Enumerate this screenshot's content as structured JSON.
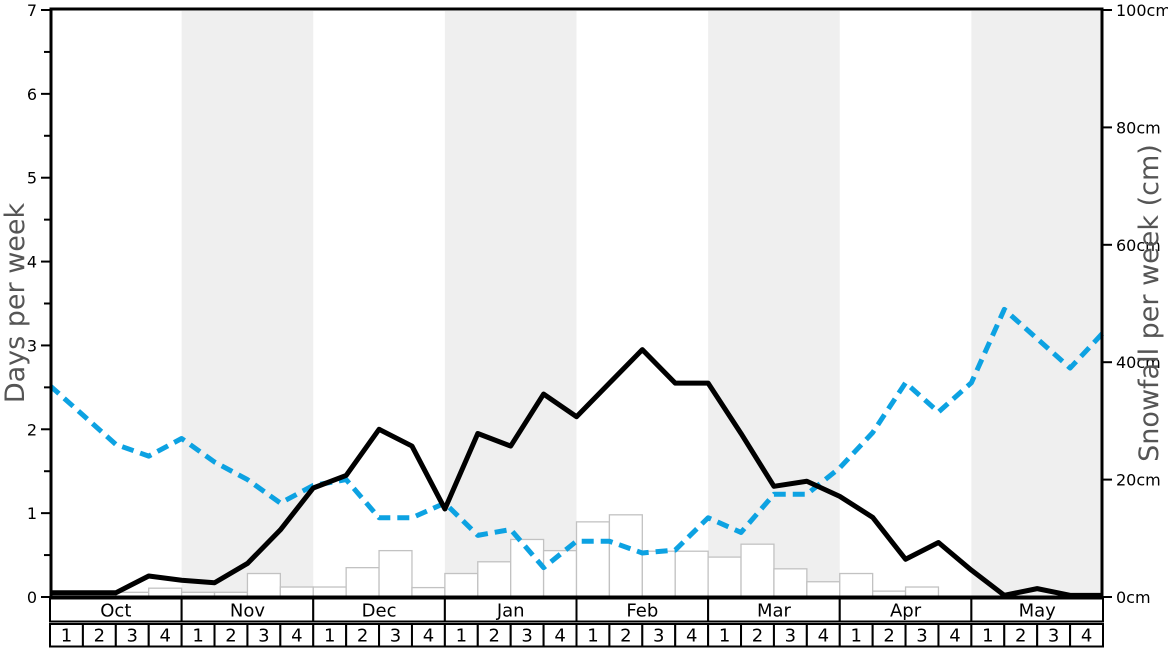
{
  "chart_data": {
    "type": "composite",
    "description": "Seasonal snow history chart: solid black line (days per week, left axis), dashed blue line (snowfall per week in cm, right axis), white bars (snowfall per week in cm, right axis).",
    "left_axis": {
      "label": "Days per week",
      "min": 0,
      "max": 7,
      "tick_step": 1,
      "minor_tick_step": 0.5,
      "tick_labels": [
        "0",
        "1",
        "2",
        "3",
        "4",
        "5",
        "6",
        "7"
      ]
    },
    "right_axis": {
      "label": "Snowfall per week (cm)",
      "min": 0,
      "max": 100,
      "tick_step": 20,
      "tick_labels": [
        "0cm",
        "20cm",
        "40cm",
        "60cm",
        "80cm",
        "100cm"
      ]
    },
    "x_axis": {
      "months": [
        "Oct",
        "Nov",
        "Dec",
        "Jan",
        "Feb",
        "Mar",
        "Apr",
        "May"
      ],
      "week_labels": [
        "1",
        "2",
        "3",
        "4"
      ],
      "shaded_months": [
        "Nov",
        "Jan",
        "Mar",
        "May"
      ],
      "weeks_total": 32
    },
    "series": [
      {
        "name": "days-of-snow-line",
        "type": "line",
        "style": "solid",
        "axis": "left",
        "color": "#000000",
        "values_days": [
          0.05,
          0.05,
          0.05,
          0.25,
          0.2,
          0.17,
          0.4,
          0.8,
          1.3,
          1.45,
          2.0,
          1.8,
          1.05,
          1.95,
          1.8,
          2.42,
          2.15,
          2.55,
          2.95,
          2.55,
          2.55,
          1.95,
          1.32,
          1.38,
          1.2,
          0.95,
          0.45,
          0.65,
          0.32,
          0.02,
          0.1,
          0.02,
          0.02
        ]
      },
      {
        "name": "snowfall-dashed-line",
        "type": "line",
        "style": "dashed",
        "axis": "right",
        "color": "#0da2e2",
        "values_cm": [
          36,
          31,
          26,
          24,
          27,
          23,
          20,
          16,
          19,
          20,
          13.5,
          13.5,
          16,
          10.5,
          11.5,
          5,
          9.5,
          9.5,
          7.5,
          8,
          13.5,
          11,
          17.5,
          17.5,
          22,
          28,
          36.5,
          31.5,
          36.5,
          49,
          44,
          39,
          45
        ]
      },
      {
        "name": "snowfall-bars",
        "type": "bar",
        "axis": "right",
        "fill": "#ffffff",
        "stroke": "#c2c2c2",
        "values_cm": [
          0,
          0,
          0.8,
          1.5,
          0.8,
          0.8,
          4.0,
          1.7,
          1.7,
          5.0,
          7.9,
          1.6,
          4.0,
          6.0,
          9.8,
          7.9,
          12.8,
          14.0,
          7.8,
          7.8,
          6.8,
          9.0,
          4.8,
          2.6,
          4.0,
          1.0,
          1.7,
          0,
          0,
          0,
          0,
          0
        ]
      }
    ],
    "colors": {
      "band_shade": "#efefef",
      "axis_title": "#555555",
      "spine": "#000000",
      "bar_stroke": "#c2c2c2",
      "bar_fill": "#ffffff",
      "dashed_line": "#0da2e2",
      "solid_line": "#000000"
    }
  }
}
